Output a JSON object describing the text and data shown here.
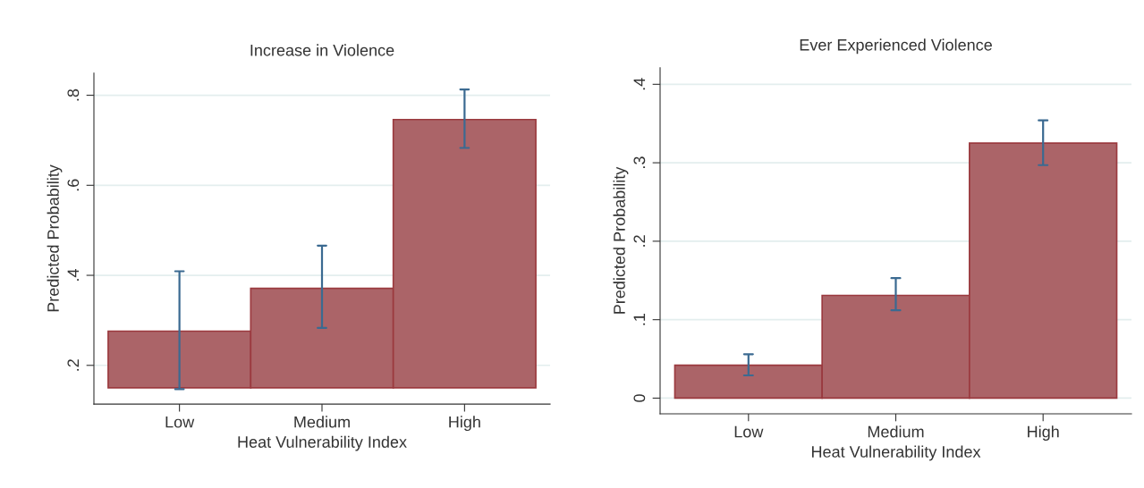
{
  "chart_data": [
    {
      "type": "bar",
      "title": "Increase in Violence",
      "xlabel": "Heat Vulnerability Index",
      "ylabel": "Predicted Probability",
      "categories": [
        "Low",
        "Medium",
        "High"
      ],
      "series": [
        {
          "color": "#ab6468",
          "base": [
            0.15,
            0.15,
            0.15
          ],
          "values": [
            0.126,
            0.221,
            0.596
          ],
          "errors": [
            [
              0.147,
              0.409
            ],
            [
              0.283,
              0.466
            ],
            [
              0.683,
              0.813
            ]
          ]
        }
      ],
      "ylim": [
        0.114,
        0.849
      ],
      "yticks": [
        {
          "value": 0.2,
          "label": ".2"
        },
        {
          "value": 0.4,
          "label": ".4"
        },
        {
          "value": 0.6,
          "label": ".6"
        },
        {
          "value": 0.8,
          "label": ".8"
        }
      ],
      "grid": "y"
    },
    {
      "type": "bar",
      "title": "Ever Experienced Violence",
      "xlabel": "Heat Vulnerability Index",
      "ylabel": "Predicted Probability",
      "categories": [
        "Low",
        "Medium",
        "High"
      ],
      "series": [
        {
          "color": "#ab6468",
          "values": [
            0.042,
            0.131,
            0.325
          ],
          "errors": [
            [
              0.029,
              0.056
            ],
            [
              0.112,
              0.153
            ],
            [
              0.297,
              0.354
            ]
          ]
        }
      ],
      "ylim": [
        -0.02,
        0.421
      ],
      "yticks": [
        0,
        {
          "value": 0.1,
          "label": ".1"
        },
        {
          "value": 0.2,
          "label": ".2"
        },
        {
          "value": 0.3,
          "label": ".3"
        },
        {
          "value": 0.4,
          "label": ".4"
        }
      ],
      "grid": "y"
    }
  ]
}
